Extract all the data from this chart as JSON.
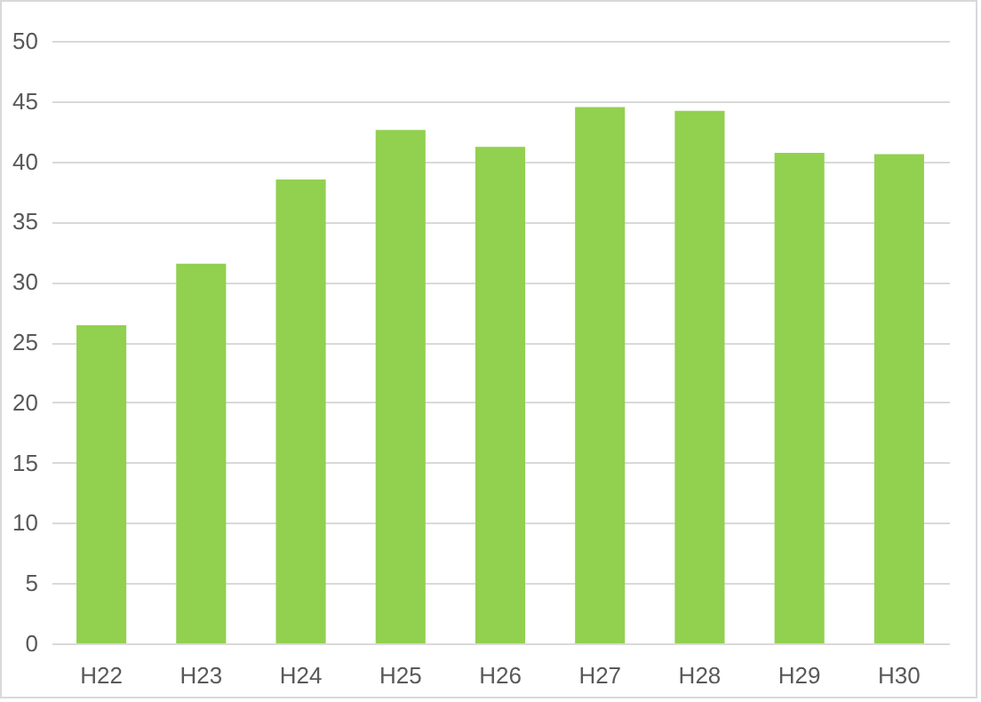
{
  "chart_data": {
    "type": "bar",
    "categories": [
      "H22",
      "H23",
      "H24",
      "H25",
      "H26",
      "H27",
      "H28",
      "H29",
      "H30"
    ],
    "values": [
      26.4,
      31.5,
      38.5,
      42.6,
      41.2,
      44.5,
      44.2,
      40.7,
      40.6
    ],
    "color": "#92d050",
    "ylim": [
      0,
      50
    ],
    "yticks": [
      0,
      5,
      10,
      15,
      20,
      25,
      30,
      35,
      40,
      45,
      50
    ],
    "grid": "y"
  }
}
